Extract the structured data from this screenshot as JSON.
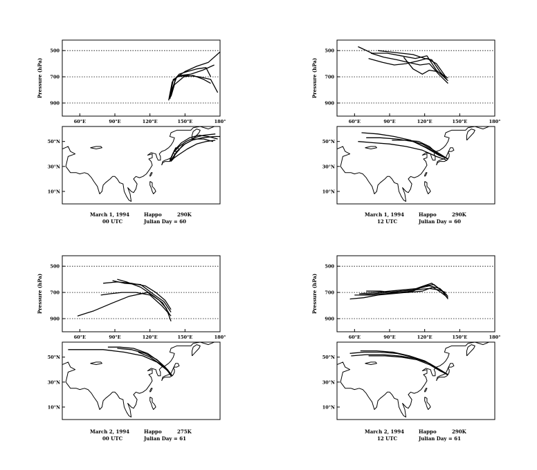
{
  "figure": {
    "x_tick_labels": [
      "60°E",
      "90°E",
      "120°E",
      "150°E",
      "180°"
    ],
    "lat_tick_labels": [
      "50°N",
      "30°N",
      "10°N"
    ],
    "ylabel": "Pressure (hPa)"
  },
  "chart_data": [
    {
      "type": "line",
      "panel": "top-left",
      "caption": {
        "date": "March 1, 1994",
        "station": "Happo",
        "temperature": "290K",
        "time": "00 UTC",
        "julian": "Julian Day =  60"
      },
      "ylabel": "Pressure (hPa)",
      "y_ticks": [
        500,
        700,
        900
      ],
      "ylim": [
        1000,
        420
      ],
      "xlim": [
        45,
        180
      ],
      "x_ticks": [
        60,
        90,
        120,
        150,
        180
      ],
      "grid": true,
      "series": [
        {
          "lon": [
            137,
            142,
            150,
            160,
            170,
            180
          ],
          "p": [
            870,
            710,
            660,
            620,
            590,
            510
          ]
        },
        {
          "lon": [
            137,
            140,
            146,
            155,
            165,
            175
          ],
          "p": [
            860,
            720,
            690,
            680,
            650,
            610
          ]
        },
        {
          "lon": [
            138,
            141,
            149,
            157,
            166,
            172
          ],
          "p": [
            850,
            760,
            700,
            690,
            720,
            750
          ]
        },
        {
          "lon": [
            136,
            139,
            145,
            152,
            160,
            168,
            172
          ],
          "p": [
            880,
            740,
            680,
            660,
            640,
            630,
            700
          ]
        },
        {
          "lon": [
            137,
            143,
            152,
            162,
            172,
            178
          ],
          "p": [
            840,
            700,
            690,
            700,
            720,
            820
          ]
        }
      ],
      "map": {
        "trajectories": [
          {
            "lon": [
              138,
              142,
              148,
              156,
              165,
              175,
              180
            ],
            "lat": [
              34,
              40,
              47,
              51,
              53,
              54,
              54
            ]
          },
          {
            "lon": [
              138,
              143,
              150,
              158,
              166,
              174
            ],
            "lat": [
              35,
              42,
              48,
              52,
              52,
              50
            ]
          },
          {
            "lon": [
              137,
              141,
              147,
              154,
              162,
              170,
              178
            ],
            "lat": [
              34,
              43,
              49,
              53,
              55,
              54,
              52
            ]
          },
          {
            "lon": [
              138,
              144,
              152,
              160,
              168,
              176
            ],
            "lat": [
              35,
              39,
              44,
              48,
              50,
              51
            ]
          },
          {
            "lon": [
              137,
              140,
              145,
              151,
              158,
              166,
              176
            ],
            "lat": [
              35,
              41,
              46,
              50,
              53,
              55,
              56
            ]
          }
        ]
      }
    },
    {
      "type": "line",
      "panel": "top-right",
      "caption": {
        "date": "March 1, 1994",
        "station": "Happo",
        "temperature": "290K",
        "time": "12 UTC",
        "julian": "Julian Day =  60"
      },
      "ylabel": "Pressure (hPa)",
      "y_ticks": [
        500,
        700,
        900
      ],
      "ylim": [
        1000,
        420
      ],
      "xlim": [
        45,
        180
      ],
      "x_ticks": [
        60,
        90,
        120,
        150,
        180
      ],
      "grid": true,
      "series": [
        {
          "lon": [
            140,
            130,
            122,
            112,
            100,
            88,
            75,
            63
          ],
          "p": [
            730,
            650,
            540,
            560,
            540,
            520,
            520,
            470
          ]
        },
        {
          "lon": [
            140,
            132,
            124,
            116,
            106,
            96,
            85,
            74
          ],
          "p": [
            750,
            680,
            600,
            610,
            590,
            570,
            550,
            520
          ]
        },
        {
          "lon": [
            139,
            133,
            126,
            120,
            110,
            100,
            90,
            80
          ],
          "p": [
            720,
            660,
            570,
            560,
            530,
            520,
            510,
            500
          ]
        },
        {
          "lon": [
            138,
            130,
            122,
            114,
            104,
            94,
            84,
            72
          ],
          "p": [
            700,
            600,
            560,
            580,
            600,
            610,
            590,
            560
          ]
        },
        {
          "lon": [
            140,
            131,
            124,
            118,
            110,
            102
          ],
          "p": [
            710,
            660,
            650,
            680,
            640,
            550
          ]
        }
      ],
      "map": {
        "trajectories": [
          {
            "lon": [
              140,
              132,
              122,
              110,
              96,
              82,
              70
            ],
            "lat": [
              36,
              40,
              45,
              50,
              52,
              53,
              53
            ]
          },
          {
            "lon": [
              140,
              132,
              121,
              108,
              94,
              80,
              66
            ],
            "lat": [
              36,
              39,
              45,
              51,
              54,
              56,
              57
            ]
          },
          {
            "lon": [
              140,
              131,
              124,
              115,
              104,
              92
            ],
            "lat": [
              36,
              40,
              46,
              50,
              51,
              51
            ]
          },
          {
            "lon": [
              139,
              130,
              118,
              104,
              90,
              76,
              63
            ],
            "lat": [
              35,
              38,
              43,
              46,
              48,
              49,
              50
            ]
          },
          {
            "lon": [
              140,
              133,
              126,
              118,
              110
            ],
            "lat": [
              36,
              40,
              44,
              48,
              50
            ]
          }
        ]
      }
    },
    {
      "type": "line",
      "panel": "bottom-left",
      "caption": {
        "date": "March 2, 1994",
        "station": "Happo",
        "temperature": "275K",
        "time": "00 UTC",
        "julian": "Julian Day =  61"
      },
      "ylabel": "Pressure (hPa)",
      "y_ticks": [
        500,
        700,
        900
      ],
      "ylim": [
        1000,
        420
      ],
      "xlim": [
        45,
        180
      ],
      "x_ticks": [
        60,
        90,
        120,
        150,
        180
      ],
      "grid": true,
      "series": [
        {
          "lon": [
            138,
            134,
            128,
            118,
            102,
            88,
            72,
            58
          ],
          "p": [
            920,
            820,
            760,
            700,
            730,
            780,
            840,
            880
          ]
        },
        {
          "lon": [
            138,
            132,
            124,
            112,
            98,
            88
          ],
          "p": [
            850,
            770,
            720,
            640,
            630,
            610
          ]
        },
        {
          "lon": [
            138,
            133,
            125,
            116,
            104,
            92,
            80
          ],
          "p": [
            830,
            760,
            700,
            650,
            630,
            620,
            630
          ]
        },
        {
          "lon": [
            137,
            131,
            122,
            112,
            100,
            92
          ],
          "p": [
            870,
            780,
            720,
            660,
            620,
            600
          ]
        },
        {
          "lon": [
            138,
            130,
            120,
            108,
            96,
            86,
            78
          ],
          "p": [
            880,
            800,
            720,
            700,
            700,
            710,
            720
          ]
        }
      ],
      "map": {
        "trajectories": [
          {
            "lon": [
              139,
              134,
              126,
              114,
              98,
              80,
              62,
              50
            ],
            "lat": [
              35,
              40,
              46,
              51,
              54,
              56,
              56,
              56
            ]
          },
          {
            "lon": [
              139,
              134,
              127,
              118,
              106,
              94,
              84
            ],
            "lat": [
              35,
              41,
              47,
              53,
              57,
              58,
              58
            ]
          },
          {
            "lon": [
              138,
              133,
              126,
              116,
              104,
              92
            ],
            "lat": [
              35,
              42,
              48,
              53,
              56,
              57
            ]
          },
          {
            "lon": [
              139,
              135,
              128,
              120,
              110
            ],
            "lat": [
              35,
              40,
              45,
              50,
              54
            ]
          }
        ]
      }
    },
    {
      "type": "line",
      "panel": "bottom-right",
      "caption": {
        "date": "March 2, 1994",
        "station": "Happo",
        "temperature": "290K",
        "time": "12 UTC",
        "julian": "Julian Day =  61"
      },
      "ylabel": "Pressure (hPa)",
      "y_ticks": [
        500,
        700,
        900
      ],
      "ylim": [
        1000,
        420
      ],
      "xlim": [
        45,
        180
      ],
      "x_ticks": [
        60,
        90,
        120,
        150,
        180
      ],
      "grid": true,
      "series": [
        {
          "lon": [
            140,
            135,
            128,
            120,
            110,
            98,
            86,
            74,
            60
          ],
          "p": [
            750,
            690,
            640,
            650,
            690,
            700,
            710,
            720,
            720
          ]
        },
        {
          "lon": [
            140,
            134,
            126,
            116,
            104,
            92,
            80,
            68,
            56
          ],
          "p": [
            730,
            680,
            630,
            660,
            700,
            710,
            720,
            740,
            750
          ]
        },
        {
          "lon": [
            139,
            133,
            124,
            114,
            102,
            90,
            78,
            64
          ],
          "p": [
            720,
            670,
            650,
            670,
            680,
            690,
            700,
            710
          ]
        },
        {
          "lon": [
            140,
            134,
            127,
            118,
            106,
            94,
            82,
            70
          ],
          "p": [
            740,
            700,
            660,
            690,
            700,
            700,
            690,
            690
          ]
        },
        {
          "lon": [
            138,
            132,
            124,
            112,
            100,
            88,
            76,
            64
          ],
          "p": [
            700,
            680,
            670,
            680,
            690,
            700,
            710,
            720
          ]
        }
      ],
      "map": {
        "trajectories": [
          {
            "lon": [
              140,
              133,
              124,
              112,
              98,
              84,
              70,
              57
            ],
            "lat": [
              36,
              40,
              45,
              49,
              51,
              52,
              52,
              51
            ]
          },
          {
            "lon": [
              140,
              132,
              122,
              110,
              96,
              82,
              68,
              56
            ],
            "lat": [
              36,
              40,
              46,
              50,
              53,
              54,
              54,
              53
            ]
          },
          {
            "lon": [
              139,
              131,
              120,
              107,
              93,
              79,
              65
            ],
            "lat": [
              36,
              41,
              47,
              51,
              54,
              55,
              55
            ]
          },
          {
            "lon": [
              140,
              133,
              124,
              113,
              100,
              86,
              72
            ],
            "lat": [
              36,
              39,
              44,
              48,
              50,
              51,
              51
            ]
          }
        ]
      }
    }
  ]
}
